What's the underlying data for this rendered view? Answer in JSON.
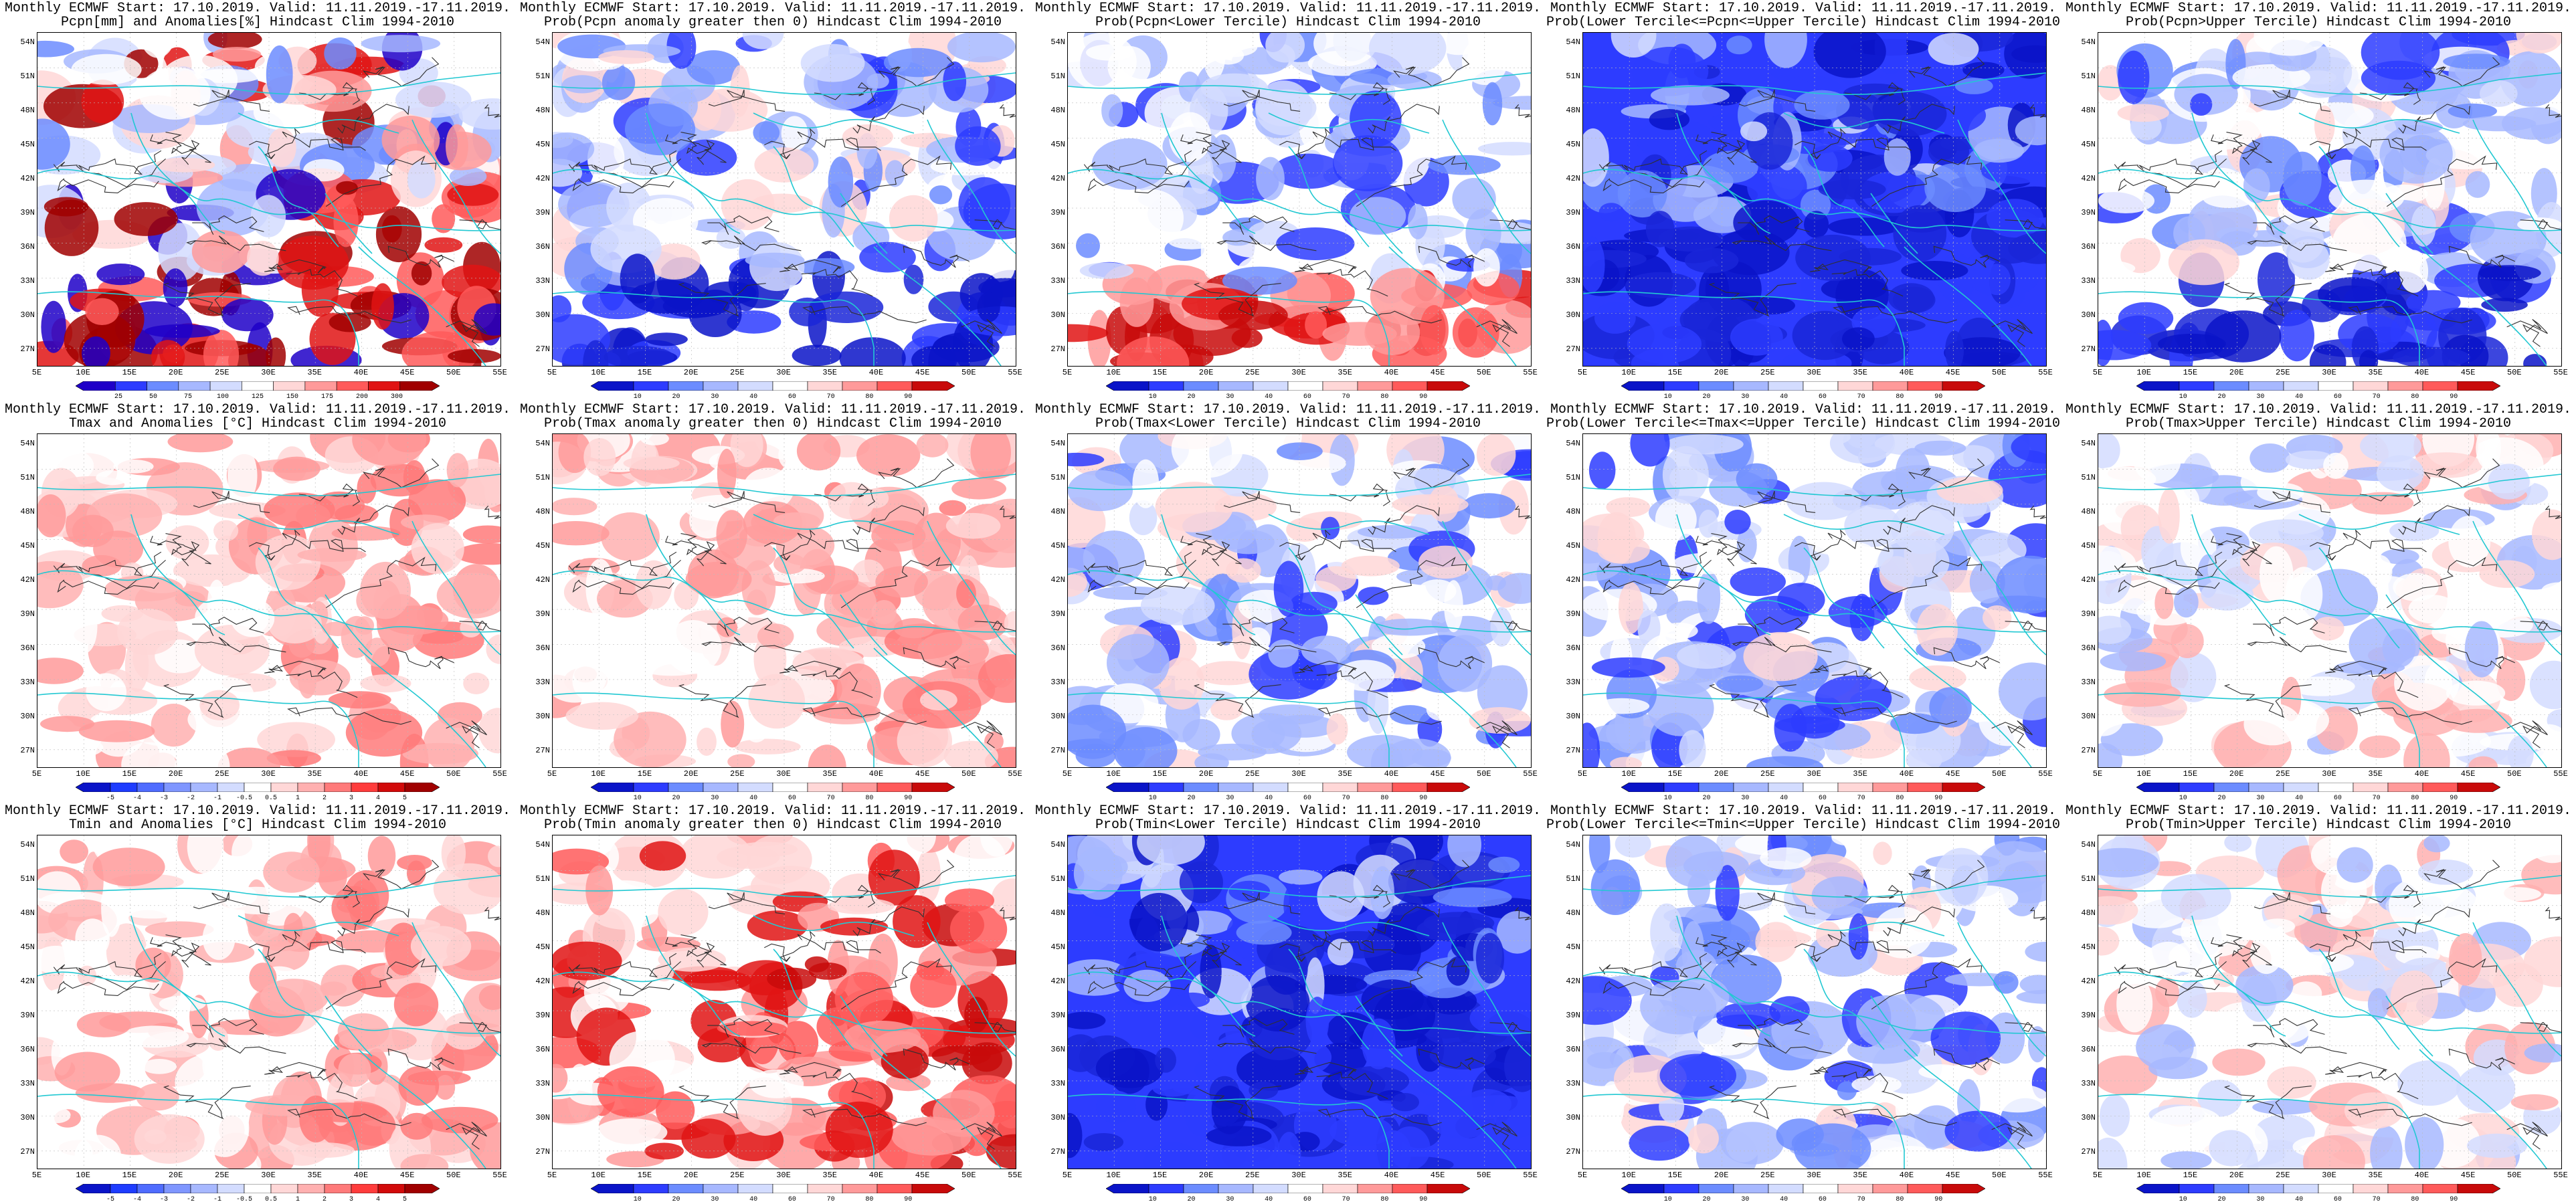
{
  "figure": {
    "rows": [
      {
        "panels": [
          {
            "title_line1": "Monthly ECMWF Start: 17.10.2019. Valid: 11.11.2019.-17.11.2019.",
            "title_line2": "Pcpn[mm] and Anomalies[%] Hindcast Clim 1994-2010",
            "colorbar": {
              "ticks": [
                "25",
                "50",
                "75",
                "100",
                "125",
                "150",
                "175",
                "200",
                "300"
              ],
              "colors": [
                "#1f00c8",
                "#2d3cff",
                "#6c8cff",
                "#a7b8ff",
                "#d3dcff",
                "#ffffff",
                "#ffd7d7",
                "#ff9a9a",
                "#ff5a5a",
                "#e01414",
                "#a00000"
              ]
            },
            "map_style": "anom_precip"
          },
          {
            "title_line1": "Monthly ECMWF Start: 17.10.2019. Valid: 11.11.2019.-17.11.2019.",
            "title_line2": "Prob(Pcpn anomaly greater then 0) Hindcast Clim 1994-2010",
            "colorbar": {
              "ticks": [
                "10",
                "20",
                "30",
                "40",
                "60",
                "70",
                "80",
                "90"
              ],
              "colors": [
                "#0a14c8",
                "#2d3cff",
                "#6c8cff",
                "#a7b8ff",
                "#d3dcff",
                "#ffffff",
                "#ffd7d7",
                "#ff9a9a",
                "#ff5a5a",
                "#c80a0a"
              ]
            },
            "map_style": "blue_prob"
          },
          {
            "title_line1": "Monthly ECMWF Start: 17.10.2019. Valid: 11.11.2019.-17.11.2019.",
            "title_line2": "Prob(Pcpn<Lower Tercile) Hindcast Clim 1994-2010",
            "colorbar": {
              "ticks": [
                "10",
                "20",
                "30",
                "40",
                "60",
                "70",
                "80",
                "90"
              ],
              "colors": [
                "#0a14c8",
                "#2d3cff",
                "#6c8cff",
                "#a7b8ff",
                "#d3dcff",
                "#ffffff",
                "#ffd7d7",
                "#ff9a9a",
                "#ff5a5a",
                "#c80a0a"
              ]
            },
            "map_style": "blue_red_south"
          },
          {
            "title_line1": "Monthly ECMWF Start: 17.10.2019. Valid: 11.11.2019.-17.11.2019.",
            "title_line2": "Prob(Lower Tercile<=Pcpn<=Upper Tercile) Hindcast Clim 1994-2010",
            "colorbar": {
              "ticks": [
                "10",
                "20",
                "30",
                "40",
                "60",
                "70",
                "80",
                "90"
              ],
              "colors": [
                "#0a14c8",
                "#2d3cff",
                "#6c8cff",
                "#a7b8ff",
                "#d3dcff",
                "#ffffff",
                "#ffd7d7",
                "#ff9a9a",
                "#ff5a5a",
                "#c80a0a"
              ]
            },
            "map_style": "deep_blue"
          },
          {
            "title_line1": "Monthly ECMWF Start: 17.10.2019. Valid: 11.11.2019.-17.11.2019.",
            "title_line2": "Prob(Pcpn>Upper Tercile) Hindcast Clim 1994-2010",
            "colorbar": {
              "ticks": [
                "10",
                "20",
                "30",
                "40",
                "60",
                "70",
                "80",
                "90"
              ],
              "colors": [
                "#0a14c8",
                "#2d3cff",
                "#6c8cff",
                "#a7b8ff",
                "#d3dcff",
                "#ffffff",
                "#ffd7d7",
                "#ff9a9a",
                "#ff5a5a",
                "#c80a0a"
              ]
            },
            "map_style": "blue_prob"
          }
        ]
      },
      {
        "panels": [
          {
            "title_line1": "Monthly ECMWF Start: 17.10.2019. Valid: 11.11.2019.-17.11.2019.",
            "title_line2": "Tmax and Anomalies [°C] Hindcast Clim 1994-2010",
            "colorbar": {
              "ticks": [
                "-5",
                "-4",
                "-3",
                "-2",
                "-1",
                "-0.5",
                "0.5",
                "1",
                "2",
                "3",
                "4",
                "5"
              ],
              "colors": [
                "#0a14c8",
                "#1e3cff",
                "#4f6cff",
                "#7f96ff",
                "#a7b8ff",
                "#d3dcff",
                "#ffffff",
                "#ffd7d7",
                "#ffb0b0",
                "#ff7a7a",
                "#ff3c3c",
                "#d20a0a",
                "#a00000"
              ]
            },
            "map_style": "light_red"
          },
          {
            "title_line1": "Monthly ECMWF Start: 17.10.2019. Valid: 11.11.2019.-17.11.2019.",
            "title_line2": "Prob(Tmax anomaly greater then 0) Hindcast Clim 1994-2010",
            "colorbar": {
              "ticks": [
                "10",
                "20",
                "30",
                "40",
                "60",
                "70",
                "80",
                "90"
              ],
              "colors": [
                "#0a14c8",
                "#2d3cff",
                "#6c8cff",
                "#a7b8ff",
                "#d3dcff",
                "#ffffff",
                "#ffd7d7",
                "#ff9a9a",
                "#ff5a5a",
                "#c80a0a"
              ]
            },
            "map_style": "light_red"
          },
          {
            "title_line1": "Monthly ECMWF Start: 17.10.2019. Valid: 11.11.2019.-17.11.2019.",
            "title_line2": "Prob(Tmax<Lower Tercile) Hindcast Clim 1994-2010",
            "colorbar": {
              "ticks": [
                "10",
                "20",
                "30",
                "40",
                "60",
                "70",
                "80",
                "90"
              ],
              "colors": [
                "#0a14c8",
                "#2d3cff",
                "#6c8cff",
                "#a7b8ff",
                "#d3dcff",
                "#ffffff",
                "#ffd7d7",
                "#ff9a9a",
                "#ff5a5a",
                "#c80a0a"
              ]
            },
            "map_style": "blue_prob"
          },
          {
            "title_line1": "Monthly ECMWF Start: 17.10.2019. Valid: 11.11.2019.-17.11.2019.",
            "title_line2": "Prob(Lower Tercile<=Tmax<=Upper Tercile) Hindcast Clim 1994-2010",
            "colorbar": {
              "ticks": [
                "10",
                "20",
                "30",
                "40",
                "60",
                "70",
                "80",
                "90"
              ],
              "colors": [
                "#0a14c8",
                "#2d3cff",
                "#6c8cff",
                "#a7b8ff",
                "#d3dcff",
                "#ffffff",
                "#ffd7d7",
                "#ff9a9a",
                "#ff5a5a",
                "#c80a0a"
              ]
            },
            "map_style": "blue_prob"
          },
          {
            "title_line1": "Monthly ECMWF Start: 17.10.2019. Valid: 11.11.2019.-17.11.2019.",
            "title_line2": "Prob(Tmax>Upper Tercile) Hindcast Clim 1994-2010",
            "colorbar": {
              "ticks": [
                "10",
                "20",
                "30",
                "40",
                "60",
                "70",
                "80",
                "90"
              ],
              "colors": [
                "#0a14c8",
                "#2d3cff",
                "#6c8cff",
                "#a7b8ff",
                "#d3dcff",
                "#ffffff",
                "#ffd7d7",
                "#ff9a9a",
                "#ff5a5a",
                "#c80a0a"
              ]
            },
            "map_style": "pale"
          }
        ]
      },
      {
        "panels": [
          {
            "title_line1": "Monthly ECMWF Start: 17.10.2019. Valid: 11.11.2019.-17.11.2019.",
            "title_line2": "Tmin and Anomalies [°C] Hindcast Clim 1994-2010",
            "colorbar": {
              "ticks": [
                "-5",
                "-4",
                "-3",
                "-2",
                "-1",
                "-0.5",
                "0.5",
                "1",
                "2",
                "3",
                "4",
                "5"
              ],
              "colors": [
                "#0a14c8",
                "#1e3cff",
                "#4f6cff",
                "#7f96ff",
                "#a7b8ff",
                "#d3dcff",
                "#ffffff",
                "#ffd7d7",
                "#ffb0b0",
                "#ff7a7a",
                "#ff3c3c",
                "#d20a0a",
                "#a00000"
              ]
            },
            "map_style": "light_red"
          },
          {
            "title_line1": "Monthly ECMWF Start: 17.10.2019. Valid: 11.11.2019.-17.11.2019.",
            "title_line2": "Prob(Tmin anomaly greater then 0) Hindcast Clim 1994-2010",
            "colorbar": {
              "ticks": [
                "10",
                "20",
                "30",
                "40",
                "60",
                "70",
                "80",
                "90"
              ],
              "colors": [
                "#0a14c8",
                "#2d3cff",
                "#6c8cff",
                "#a7b8ff",
                "#d3dcff",
                "#ffffff",
                "#ffd7d7",
                "#ff9a9a",
                "#ff5a5a",
                "#c80a0a"
              ]
            },
            "map_style": "red_prob"
          },
          {
            "title_line1": "Monthly ECMWF Start: 17.10.2019. Valid: 11.11.2019.-17.11.2019.",
            "title_line2": "Prob(Tmin<Lower Tercile) Hindcast Clim 1994-2010",
            "colorbar": {
              "ticks": [
                "10",
                "20",
                "30",
                "40",
                "60",
                "70",
                "80",
                "90"
              ],
              "colors": [
                "#0a14c8",
                "#2d3cff",
                "#6c8cff",
                "#a7b8ff",
                "#d3dcff",
                "#ffffff",
                "#ffd7d7",
                "#ff9a9a",
                "#ff5a5a",
                "#c80a0a"
              ]
            },
            "map_style": "deep_blue"
          },
          {
            "title_line1": "Monthly ECMWF Start: 17.10.2019. Valid: 11.11.2019.-17.11.2019.",
            "title_line2": "Prob(Lower Tercile<=Tmin<=Upper Tercile) Hindcast Clim 1994-2010",
            "colorbar": {
              "ticks": [
                "10",
                "20",
                "30",
                "40",
                "60",
                "70",
                "80",
                "90"
              ],
              "colors": [
                "#0a14c8",
                "#2d3cff",
                "#6c8cff",
                "#a7b8ff",
                "#d3dcff",
                "#ffffff",
                "#ffd7d7",
                "#ff9a9a",
                "#ff5a5a",
                "#c80a0a"
              ]
            },
            "map_style": "blue_prob"
          },
          {
            "title_line1": "Monthly ECMWF Start: 17.10.2019. Valid: 11.11.2019.-17.11.2019.",
            "title_line2": "Prob(Tmin>Upper Tercile) Hindcast Clim 1994-2010",
            "colorbar": {
              "ticks": [
                "10",
                "20",
                "30",
                "40",
                "60",
                "70",
                "80",
                "90"
              ],
              "colors": [
                "#0a14c8",
                "#2d3cff",
                "#6c8cff",
                "#a7b8ff",
                "#d3dcff",
                "#ffffff",
                "#ffd7d7",
                "#ff9a9a",
                "#ff5a5a",
                "#c80a0a"
              ]
            },
            "map_style": "pale"
          }
        ]
      }
    ],
    "lat_labels": [
      "54N",
      "51N",
      "48N",
      "45N",
      "42N",
      "39N",
      "36N",
      "33N",
      "30N",
      "27N"
    ],
    "lon_labels": [
      "5E",
      "10E",
      "15E",
      "20E",
      "25E",
      "30E",
      "35E",
      "40E",
      "45E",
      "50E",
      "55E"
    ],
    "map_colors": {
      "coast": "#22c8d2",
      "contour": "#303030",
      "grid": "#bbbbbb"
    }
  }
}
